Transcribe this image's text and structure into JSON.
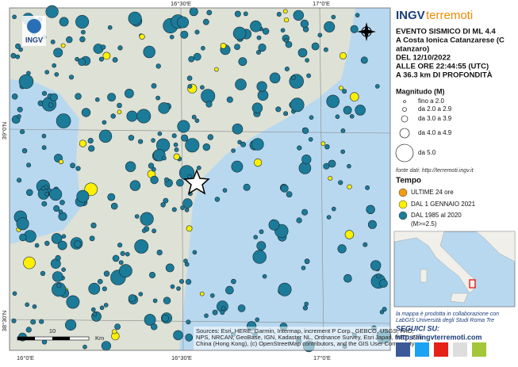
{
  "map": {
    "logo": "INGV",
    "coordinate_labels": {
      "top": [
        "16°30'E",
        "17°0'E"
      ],
      "bottom": [
        "16°0'E",
        "16°30'E",
        "17°0'E"
      ],
      "left": [
        "39°0'N",
        "38°30'N"
      ]
    },
    "attribution": [
      "Sources: Esri, HERE, Garmin, Intermap, increment P Corp., GEBCO, USGS, FAO,",
      "NPS, NRCAN, GeoBase, IGN, Kadaster NL, Ordnance Survey, Esri Japan, METI, Esri",
      "China (Hong Kong), (c) OpenStreetMap contributors, and the GIS User Community"
    ],
    "scale": [
      "10",
      "Km"
    ]
  },
  "panel": {
    "brand": [
      "INGV",
      "terremoti"
    ],
    "event": [
      "EVENTO SISMICO DI ML 4.4",
      "A Costa Ionica Catanzarese (C",
      "atanzaro)",
      "DEL 12/10/2022",
      "ALLE ORE 22:44:55 (UTC)",
      "A 36.3 km DI PROFONDITÀ"
    ],
    "magnitude_title": "Magnitudo (M)",
    "magnitude_classes": [
      "fino a 2.0",
      "da 2.0 a 2.9",
      "da 3.0 a 3.9",
      "da 4.0 a 4.9",
      "da 5.0"
    ],
    "source": "fonte dati: http://terremoti.ingv.it",
    "time_title": "Tempo",
    "time_classes": [
      "ULTIME 24 ore",
      "DAL 1 GENNAIO 2021",
      "DAL 1985 al 2020",
      "(M>=2.5)"
    ],
    "credits": [
      "la mappa è prodotta in collaborazione con",
      "LabGIS Università degli Studi Roma Tre"
    ],
    "follow": "SEGUICI SU:",
    "url": "https://ingvterremoti.com"
  }
}
